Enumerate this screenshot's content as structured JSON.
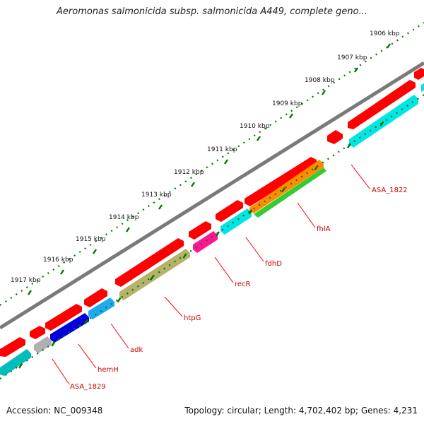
{
  "title": "Aeromonas salmonicida subsp. salmonicida A449, complete geno...",
  "footer": {
    "accession": "Accession: NC_009348",
    "topology": "Topology: circular; Length: 4,702,402 bp; Genes: 4,231"
  },
  "scale_labels": [
    "1906 kbp",
    "1907 kbp",
    "1908 kbp",
    "1909 kbp",
    "1910 kbp",
    "1911 kbp",
    "1912 kbp",
    "1913 kbp",
    "1914 kbp",
    "1915 kbp",
    "1916 kbp",
    "1917 kbp"
  ],
  "gene_labels": [
    "ASA_1822",
    "fhlA",
    "fdhD",
    "recR",
    "htpG",
    "adk",
    "hemH",
    "ASA_1829"
  ],
  "colors": {
    "backbone": "#7f7f7f",
    "forward_cds": "#ff0000",
    "ruler": "#007700",
    "label": "#cc0000",
    "leader": "#ff0000"
  }
}
